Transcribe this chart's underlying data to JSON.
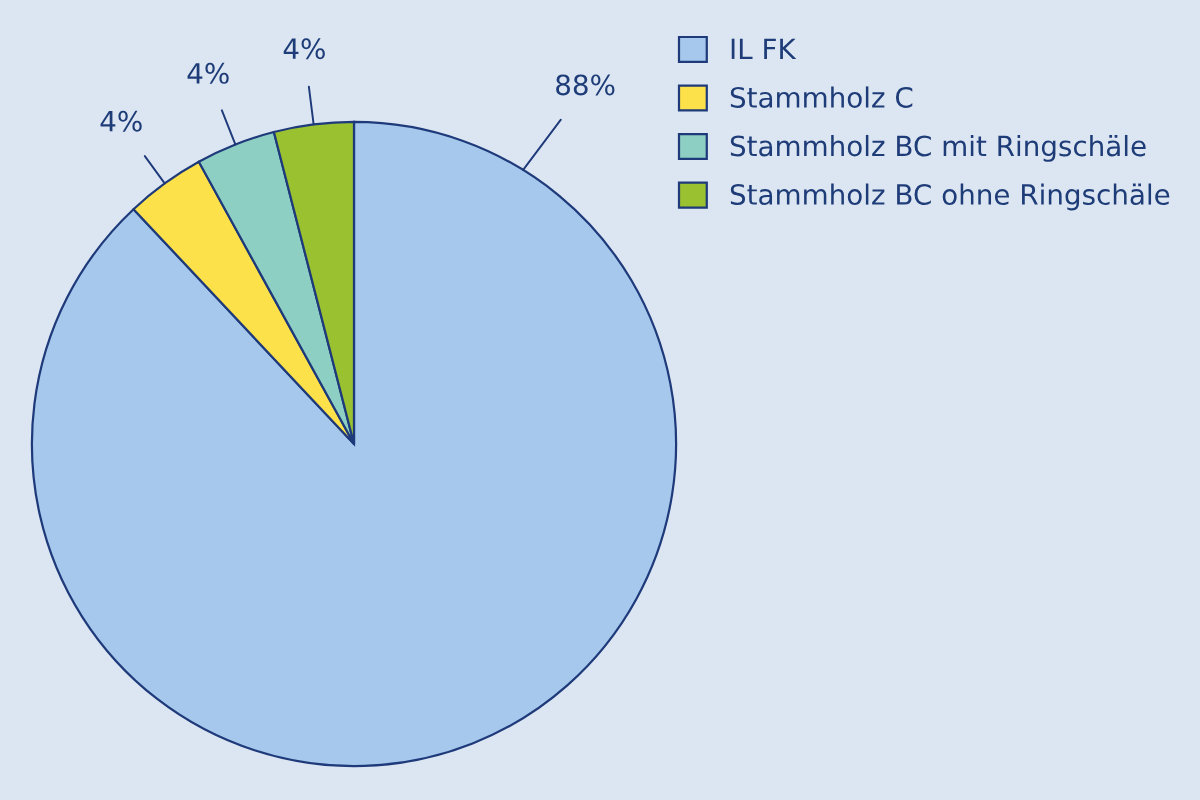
{
  "chart_data": {
    "type": "pie",
    "categories": [
      "IL FK",
      "Stammholz C",
      "Stammholz BC mit Ringschäle",
      "Stammholz BC ohne Ringschäle"
    ],
    "values": [
      88,
      4,
      4,
      4
    ],
    "value_labels": [
      "88%",
      "4%",
      "4%",
      "4%"
    ],
    "colors": [
      "#a6c8ec",
      "#fde14a",
      "#8ecfc4",
      "#99c130"
    ],
    "legend": "top right"
  }
}
